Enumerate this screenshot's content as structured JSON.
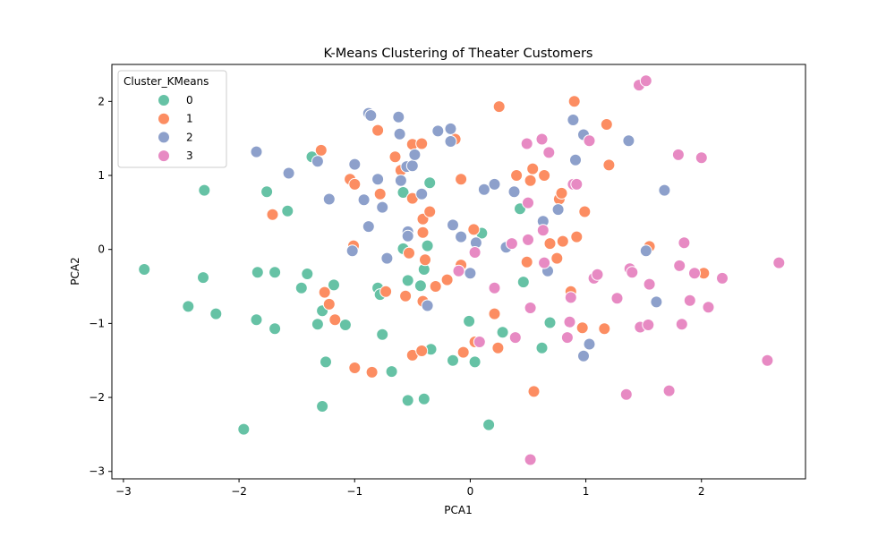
{
  "chart_data": {
    "type": "scatter",
    "title": "K-Means Clustering of Theater Customers",
    "xlabel": "PCA1",
    "ylabel": "PCA2",
    "xlim": [
      -3.1,
      2.9
    ],
    "ylim": [
      -3.1,
      2.5
    ],
    "xticks": [
      -3,
      -2,
      -1,
      0,
      1,
      2
    ],
    "yticks": [
      -3,
      -2,
      -1,
      0,
      1,
      2
    ],
    "grid": false,
    "legend": {
      "title": "Cluster_KMeans",
      "placement": "upper-left"
    },
    "series": [
      {
        "name": "0",
        "color": "#66c2a5",
        "points": [
          [
            -2.82,
            -0.27
          ],
          [
            -2.44,
            -0.77
          ],
          [
            -2.31,
            -0.38
          ],
          [
            -2.3,
            0.8
          ],
          [
            -2.2,
            -0.87
          ],
          [
            -1.96,
            -2.43
          ],
          [
            -1.85,
            -0.95
          ],
          [
            -1.84,
            -0.31
          ],
          [
            -1.76,
            0.78
          ],
          [
            -1.69,
            -0.31
          ],
          [
            -1.69,
            -1.07
          ],
          [
            -1.58,
            0.52
          ],
          [
            -1.46,
            -0.52
          ],
          [
            -1.41,
            -0.33
          ],
          [
            -1.37,
            1.25
          ],
          [
            -1.32,
            -1.01
          ],
          [
            -1.28,
            -2.12
          ],
          [
            -1.28,
            -0.83
          ],
          [
            -1.25,
            -1.52
          ],
          [
            -1.18,
            -0.48
          ],
          [
            -1.08,
            -1.02
          ],
          [
            -0.8,
            -0.52
          ],
          [
            -0.78,
            -0.61
          ],
          [
            -0.76,
            -1.15
          ],
          [
            -0.68,
            -1.65
          ],
          [
            -0.58,
            0.77
          ],
          [
            -0.58,
            0.01
          ],
          [
            -0.54,
            -0.42
          ],
          [
            -0.54,
            -2.04
          ],
          [
            -0.43,
            -0.49
          ],
          [
            -0.4,
            -2.02
          ],
          [
            -0.4,
            -0.27
          ],
          [
            -0.37,
            0.05
          ],
          [
            -0.35,
            0.9
          ],
          [
            -0.34,
            -1.35
          ],
          [
            -0.15,
            -1.5
          ],
          [
            -0.01,
            -0.97
          ],
          [
            0.04,
            -1.52
          ],
          [
            0.1,
            0.22
          ],
          [
            0.16,
            -2.37
          ],
          [
            0.28,
            -1.12
          ],
          [
            0.43,
            0.55
          ],
          [
            0.46,
            -0.44
          ],
          [
            0.62,
            -1.33
          ],
          [
            0.69,
            -0.99
          ]
        ]
      },
      {
        "name": "1",
        "color": "#fc8d62",
        "points": [
          [
            -1.71,
            0.47
          ],
          [
            -1.29,
            1.34
          ],
          [
            -1.26,
            -0.58
          ],
          [
            -1.22,
            -0.74
          ],
          [
            -1.17,
            -0.95
          ],
          [
            -1.04,
            0.95
          ],
          [
            -1.01,
            0.05
          ],
          [
            -1.0,
            0.88
          ],
          [
            -1.0,
            -1.6
          ],
          [
            -0.85,
            -1.66
          ],
          [
            -0.8,
            1.61
          ],
          [
            -0.78,
            0.75
          ],
          [
            -0.73,
            -0.57
          ],
          [
            -0.65,
            1.25
          ],
          [
            -0.6,
            1.07
          ],
          [
            -0.56,
            -0.63
          ],
          [
            -0.53,
            -0.05
          ],
          [
            -0.5,
            0.69
          ],
          [
            -0.5,
            1.42
          ],
          [
            -0.5,
            -1.43
          ],
          [
            -0.42,
            1.43
          ],
          [
            -0.42,
            -1.37
          ],
          [
            -0.41,
            0.41
          ],
          [
            -0.41,
            0.23
          ],
          [
            -0.41,
            -0.7
          ],
          [
            -0.39,
            -0.14
          ],
          [
            -0.35,
            0.51
          ],
          [
            -0.3,
            -0.5
          ],
          [
            -0.2,
            -0.41
          ],
          [
            -0.13,
            1.49
          ],
          [
            -0.08,
            0.95
          ],
          [
            -0.08,
            -0.21
          ],
          [
            -0.06,
            -1.39
          ],
          [
            0.03,
            0.27
          ],
          [
            0.04,
            -1.25
          ],
          [
            0.21,
            -0.87
          ],
          [
            0.25,
            1.93
          ],
          [
            0.24,
            -1.33
          ],
          [
            0.4,
            1.0
          ],
          [
            0.49,
            -0.17
          ],
          [
            0.52,
            0.93
          ],
          [
            0.54,
            1.09
          ],
          [
            0.55,
            -1.92
          ],
          [
            0.64,
            1.0
          ],
          [
            0.69,
            0.08
          ],
          [
            0.75,
            -0.12
          ],
          [
            0.77,
            0.68
          ],
          [
            0.79,
            0.76
          ],
          [
            0.8,
            0.11
          ],
          [
            0.87,
            -0.57
          ],
          [
            0.9,
            2.0
          ],
          [
            0.92,
            0.17
          ],
          [
            0.97,
            -1.06
          ],
          [
            0.99,
            0.51
          ],
          [
            1.18,
            1.69
          ],
          [
            1.2,
            1.14
          ],
          [
            1.16,
            -1.07
          ],
          [
            1.55,
            0.04
          ],
          [
            2.02,
            -0.32
          ]
        ]
      },
      {
        "name": "2",
        "color": "#8da0cb",
        "points": [
          [
            -1.85,
            1.32
          ],
          [
            -1.57,
            1.03
          ],
          [
            -1.32,
            1.19
          ],
          [
            -1.22,
            0.68
          ],
          [
            -1.02,
            -0.02
          ],
          [
            -1.0,
            1.15
          ],
          [
            -0.92,
            0.67
          ],
          [
            -0.88,
            0.31
          ],
          [
            -0.88,
            1.84
          ],
          [
            -0.86,
            1.81
          ],
          [
            -0.8,
            0.95
          ],
          [
            -0.76,
            0.57
          ],
          [
            -0.72,
            -0.12
          ],
          [
            -0.62,
            1.79
          ],
          [
            -0.61,
            1.56
          ],
          [
            -0.6,
            0.93
          ],
          [
            -0.55,
            1.12
          ],
          [
            -0.54,
            0.24
          ],
          [
            -0.54,
            0.18
          ],
          [
            -0.5,
            1.13
          ],
          [
            -0.48,
            1.28
          ],
          [
            -0.42,
            0.75
          ],
          [
            -0.37,
            -0.76
          ],
          [
            -0.28,
            1.6
          ],
          [
            -0.17,
            1.63
          ],
          [
            -0.17,
            1.46
          ],
          [
            -0.15,
            0.33
          ],
          [
            -0.08,
            0.17
          ],
          [
            0.0,
            -0.32
          ],
          [
            0.05,
            0.09
          ],
          [
            0.12,
            0.81
          ],
          [
            0.21,
            0.88
          ],
          [
            0.31,
            0.03
          ],
          [
            0.38,
            0.78
          ],
          [
            0.63,
            0.38
          ],
          [
            0.67,
            -0.29
          ],
          [
            0.76,
            0.54
          ],
          [
            0.89,
            1.75
          ],
          [
            0.91,
            1.21
          ],
          [
            0.98,
            1.55
          ],
          [
            0.98,
            -1.44
          ],
          [
            1.03,
            -1.28
          ],
          [
            1.37,
            1.47
          ],
          [
            1.52,
            -0.02
          ],
          [
            1.61,
            -0.71
          ],
          [
            1.68,
            0.8
          ]
        ]
      },
      {
        "name": "3",
        "color": "#e78ac3",
        "points": [
          [
            -0.1,
            -0.29
          ],
          [
            0.04,
            -0.04
          ],
          [
            0.08,
            -1.25
          ],
          [
            0.21,
            -0.52
          ],
          [
            0.36,
            0.08
          ],
          [
            0.39,
            -1.19
          ],
          [
            0.49,
            1.43
          ],
          [
            0.5,
            0.63
          ],
          [
            0.5,
            0.13
          ],
          [
            0.52,
            -0.79
          ],
          [
            0.52,
            -2.84
          ],
          [
            0.62,
            1.49
          ],
          [
            0.63,
            0.26
          ],
          [
            0.64,
            -0.18
          ],
          [
            0.68,
            1.31
          ],
          [
            0.84,
            -1.19
          ],
          [
            0.86,
            -0.98
          ],
          [
            0.87,
            -0.65
          ],
          [
            0.89,
            0.88
          ],
          [
            0.92,
            0.88
          ],
          [
            1.03,
            1.47
          ],
          [
            1.07,
            -0.39
          ],
          [
            1.1,
            -0.34
          ],
          [
            1.27,
            -0.66
          ],
          [
            1.35,
            -1.96
          ],
          [
            1.38,
            -0.26
          ],
          [
            1.4,
            -0.31
          ],
          [
            1.46,
            2.22
          ],
          [
            1.47,
            -1.05
          ],
          [
            1.52,
            2.28
          ],
          [
            1.54,
            -1.02
          ],
          [
            1.55,
            -0.47
          ],
          [
            1.72,
            -1.91
          ],
          [
            1.8,
            1.28
          ],
          [
            1.81,
            -0.22
          ],
          [
            1.83,
            -1.01
          ],
          [
            1.85,
            0.09
          ],
          [
            1.9,
            -0.69
          ],
          [
            1.94,
            -0.32
          ],
          [
            2.0,
            1.24
          ],
          [
            2.06,
            -0.78
          ],
          [
            2.18,
            -0.39
          ],
          [
            2.57,
            -1.5
          ],
          [
            2.67,
            -0.18
          ]
        ]
      }
    ]
  }
}
